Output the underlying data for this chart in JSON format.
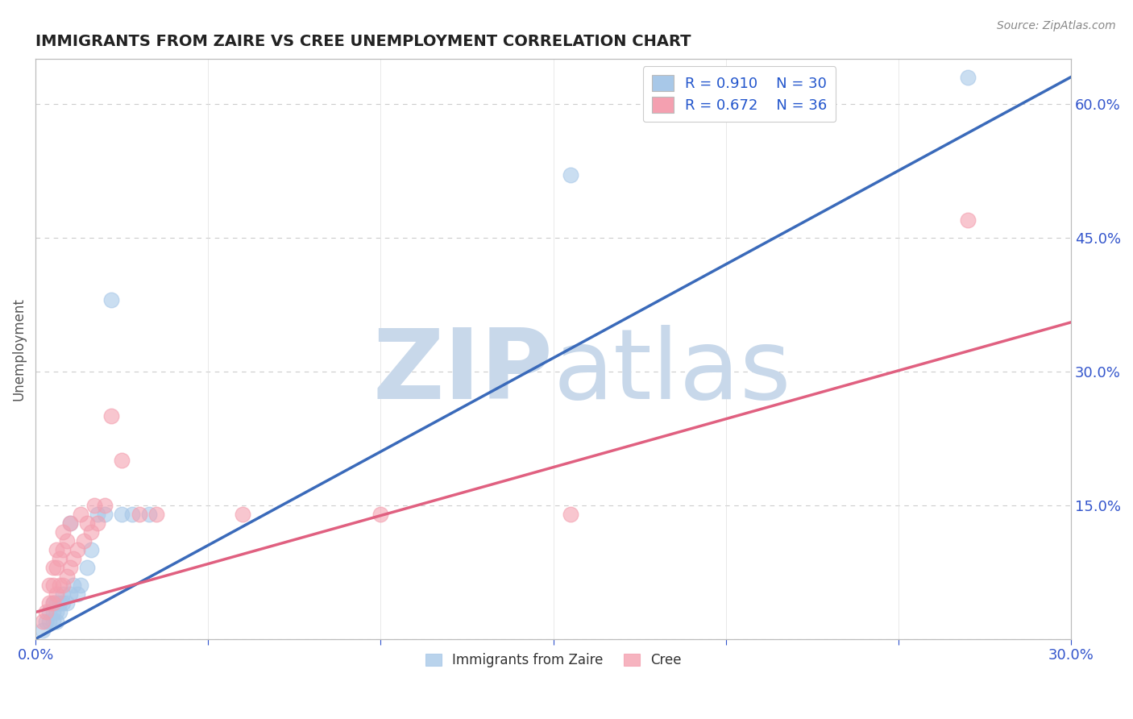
{
  "title": "IMMIGRANTS FROM ZAIRE VS CREE UNEMPLOYMENT CORRELATION CHART",
  "source": "Source: ZipAtlas.com",
  "ylabel": "Unemployment",
  "xlim": [
    0.0,
    0.3
  ],
  "ylim": [
    0.0,
    0.65
  ],
  "xticks": [
    0.0,
    0.05,
    0.1,
    0.15,
    0.2,
    0.25,
    0.3
  ],
  "xtick_labels": [
    "0.0%",
    "",
    "",
    "",
    "",
    "",
    "30.0%"
  ],
  "ytick_labels_right": [
    "",
    "15.0%",
    "30.0%",
    "45.0%",
    "60.0%"
  ],
  "ytick_positions_right": [
    0.0,
    0.15,
    0.3,
    0.45,
    0.6
  ],
  "blue_R": 0.91,
  "blue_N": 30,
  "pink_R": 0.672,
  "pink_N": 36,
  "blue_color": "#a8c8e8",
  "pink_color": "#f4a0b0",
  "blue_line_color": "#3a6aba",
  "pink_line_color": "#e06080",
  "title_color": "#222222",
  "legend_label_color": "#2255cc",
  "watermark_color": "#c8d8ea",
  "blue_scatter_x": [
    0.002,
    0.003,
    0.004,
    0.004,
    0.005,
    0.005,
    0.005,
    0.006,
    0.006,
    0.006,
    0.007,
    0.007,
    0.008,
    0.008,
    0.009,
    0.01,
    0.01,
    0.011,
    0.012,
    0.013,
    0.015,
    0.016,
    0.018,
    0.02,
    0.022,
    0.025,
    0.028,
    0.033,
    0.155,
    0.27
  ],
  "blue_scatter_y": [
    0.01,
    0.02,
    0.02,
    0.03,
    0.02,
    0.03,
    0.04,
    0.02,
    0.03,
    0.04,
    0.03,
    0.04,
    0.04,
    0.05,
    0.04,
    0.05,
    0.13,
    0.06,
    0.05,
    0.06,
    0.08,
    0.1,
    0.14,
    0.14,
    0.38,
    0.14,
    0.14,
    0.14,
    0.52,
    0.63
  ],
  "pink_scatter_x": [
    0.002,
    0.003,
    0.004,
    0.004,
    0.005,
    0.005,
    0.005,
    0.006,
    0.006,
    0.006,
    0.007,
    0.007,
    0.008,
    0.008,
    0.008,
    0.009,
    0.009,
    0.01,
    0.01,
    0.011,
    0.012,
    0.013,
    0.014,
    0.015,
    0.016,
    0.017,
    0.018,
    0.02,
    0.022,
    0.025,
    0.03,
    0.035,
    0.06,
    0.1,
    0.155,
    0.27
  ],
  "pink_scatter_y": [
    0.02,
    0.03,
    0.04,
    0.06,
    0.04,
    0.06,
    0.08,
    0.05,
    0.08,
    0.1,
    0.06,
    0.09,
    0.06,
    0.1,
    0.12,
    0.07,
    0.11,
    0.08,
    0.13,
    0.09,
    0.1,
    0.14,
    0.11,
    0.13,
    0.12,
    0.15,
    0.13,
    0.15,
    0.25,
    0.2,
    0.14,
    0.14,
    0.14,
    0.14,
    0.14,
    0.47
  ],
  "blue_line_x": [
    0.0,
    0.3
  ],
  "blue_line_y": [
    0.0,
    0.63
  ],
  "pink_line_x": [
    0.0,
    0.3
  ],
  "pink_line_y": [
    0.03,
    0.355
  ],
  "background_color": "#ffffff",
  "grid_color": "#cccccc"
}
